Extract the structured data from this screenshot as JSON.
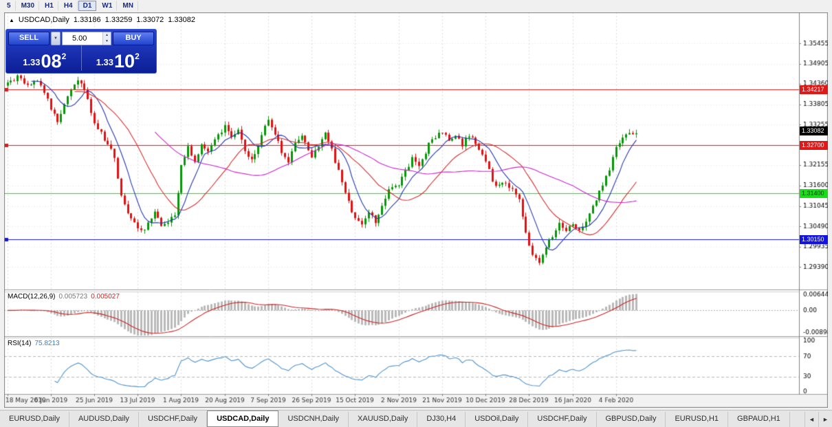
{
  "toolbar": {
    "timeframes": [
      "5",
      "M30",
      "H1",
      "H4",
      "D1",
      "W1",
      "MN"
    ],
    "active": "D1"
  },
  "header": {
    "collapse_icon": "▲",
    "title": "USDCAD,Daily",
    "open": "1.33186",
    "high": "1.33259",
    "low": "1.33072",
    "close": "1.33082"
  },
  "trade_panel": {
    "sell_label": "SELL",
    "buy_label": "BUY",
    "volume": "5.00",
    "dropdown_icon": "▼",
    "spin_up_icon": "▲",
    "spin_down_icon": "▼",
    "sell_price": {
      "prefix": "1.33",
      "big": "08",
      "sup": "2"
    },
    "buy_price": {
      "prefix": "1.33",
      "big": "10",
      "sup": "2"
    }
  },
  "tabs": {
    "items": [
      "EURUSD,Daily",
      "AUDUSD,Daily",
      "USDCHF,Daily",
      "USDCAD,Daily",
      "USDCNH,Daily",
      "XAUUSD,Daily",
      "DJ30,H4",
      "USDOil,Daily",
      "USDCHF,Daily",
      "GBPUSD,Daily",
      "EURUSD,H1",
      "GBPAUD,H1"
    ],
    "active_index": 3,
    "scroll_left": "◄",
    "scroll_right": "►"
  },
  "chart_data": {
    "type": "candlestick",
    "symbol": "USDCAD",
    "timeframe": "Daily",
    "ohlc_display": {
      "open": 1.33186,
      "high": 1.33259,
      "low": 1.33072,
      "close": 1.33082
    },
    "x_labels": [
      "18 May 2019",
      "6 Jun 2019",
      "25 Jun 2019",
      "13 Jul 2019",
      "1 Aug 2019",
      "20 Aug 2019",
      "7 Sep 2019",
      "26 Sep 2019",
      "15 Oct 2019",
      "2 Nov 2019",
      "21 Nov 2019",
      "10 Dec 2019",
      "28 Dec 2019",
      "16 Jan 2020",
      "4 Feb 2020"
    ],
    "bars_per_label": 13,
    "total_bars": 189,
    "close_anchors": [
      [
        0,
        1.3435
      ],
      [
        3,
        1.3455
      ],
      [
        6,
        1.3428
      ],
      [
        9,
        1.3446
      ],
      [
        12,
        1.3392
      ],
      [
        15,
        1.333
      ],
      [
        18,
        1.3398
      ],
      [
        21,
        1.3448
      ],
      [
        23,
        1.342
      ],
      [
        26,
        1.3332
      ],
      [
        29,
        1.3288
      ],
      [
        32,
        1.324
      ],
      [
        34,
        1.313
      ],
      [
        37,
        1.3068
      ],
      [
        39,
        1.3048
      ],
      [
        41,
        1.3038
      ],
      [
        44,
        1.309
      ],
      [
        46,
        1.3045
      ],
      [
        49,
        1.3072
      ],
      [
        50,
        1.3082
      ],
      [
        52,
        1.321
      ],
      [
        54,
        1.3262
      ],
      [
        56,
        1.3222
      ],
      [
        58,
        1.3278
      ],
      [
        60,
        1.3252
      ],
      [
        63,
        1.3298
      ],
      [
        65,
        1.3322
      ],
      [
        67,
        1.3288
      ],
      [
        69,
        1.3318
      ],
      [
        71,
        1.3258
      ],
      [
        73,
        1.323
      ],
      [
        75,
        1.3272
      ],
      [
        78,
        1.3338
      ],
      [
        80,
        1.3298
      ],
      [
        82,
        1.3252
      ],
      [
        84,
        1.3222
      ],
      [
        86,
        1.3278
      ],
      [
        88,
        1.3298
      ],
      [
        90,
        1.3258
      ],
      [
        91,
        1.3242
      ],
      [
        93,
        1.327
      ],
      [
        95,
        1.33
      ],
      [
        97,
        1.3258
      ],
      [
        99,
        1.3198
      ],
      [
        101,
        1.3138
      ],
      [
        103,
        1.3088
      ],
      [
        104,
        1.3068
      ],
      [
        106,
        1.3058
      ],
      [
        108,
        1.3088
      ],
      [
        110,
        1.3058
      ],
      [
        112,
        1.3108
      ],
      [
        114,
        1.3148
      ],
      [
        117,
        1.3162
      ],
      [
        119,
        1.3198
      ],
      [
        121,
        1.3232
      ],
      [
        123,
        1.3212
      ],
      [
        125,
        1.3252
      ],
      [
        127,
        1.3288
      ],
      [
        130,
        1.3308
      ],
      [
        132,
        1.3282
      ],
      [
        134,
        1.3298
      ],
      [
        136,
        1.3272
      ],
      [
        138,
        1.3298
      ],
      [
        140,
        1.3278
      ],
      [
        143,
        1.3228
      ],
      [
        145,
        1.3172
      ],
      [
        147,
        1.3158
      ],
      [
        149,
        1.3168
      ],
      [
        151,
        1.3148
      ],
      [
        153,
        1.3118
      ],
      [
        155,
        1.3028
      ],
      [
        157,
        1.2968
      ],
      [
        159,
        1.2955
      ],
      [
        161,
        1.2992
      ],
      [
        163,
        1.3022
      ],
      [
        165,
        1.3058
      ],
      [
        167,
        1.3042
      ],
      [
        169,
        1.3052
      ],
      [
        171,
        1.3036
      ],
      [
        173,
        1.3062
      ],
      [
        175,
        1.3102
      ],
      [
        177,
        1.314
      ],
      [
        179,
        1.3182
      ],
      [
        181,
        1.3232
      ],
      [
        182,
        1.3262
      ],
      [
        184,
        1.3288
      ],
      [
        186,
        1.3298
      ],
      [
        188,
        1.3308
      ]
    ],
    "price_axis_ticks": [
      "1.35455",
      "1.34905",
      "1.34360",
      "1.33805",
      "1.33255",
      "1.32700",
      "1.32155",
      "1.31600",
      "1.31045",
      "1.30490",
      "1.29935",
      "1.29390"
    ],
    "price_range": {
      "top": 1.363,
      "bottom": 1.2878
    },
    "current_price": {
      "value": 1.33082,
      "label": "1.33082",
      "tag_bg": "#000000",
      "tag_fg": "#ffffff"
    },
    "horizontal_levels": [
      {
        "value": 1.34217,
        "label": "1.34217",
        "color": "#e01818",
        "tag_fg": "#ffffff",
        "handle": true
      },
      {
        "value": 1.327,
        "label": "1.32700",
        "color": "#e01818",
        "tag_fg": "#ffffff",
        "handle": true
      },
      {
        "value": 1.314,
        "label": "1.31400",
        "color": "#18dd18",
        "tag_fg": "#083808",
        "handle": false
      },
      {
        "value": 1.3015,
        "label": "1.30150",
        "color": "#1414e0",
        "tag_fg": "#ffffff",
        "handle": true
      }
    ],
    "moving_averages": [
      {
        "period": 8,
        "color": "#2236ae"
      },
      {
        "period": 21,
        "color": "#d82a2a"
      },
      {
        "period": 45,
        "color": "#cc22cc"
      }
    ],
    "candle_colors": {
      "up": "#089608",
      "down": "#e01010"
    },
    "grid_color": "#dcdcdc",
    "macd": {
      "label": "MACD(12,26,9)",
      "main_value": "0.005723",
      "signal_value": "0.005027",
      "fast": 12,
      "slow": 26,
      "signal": 9,
      "axis_labels": [
        "0.006448",
        "0.00",
        "-0.008982"
      ],
      "range": {
        "max": 0.0065,
        "min": -0.009
      },
      "histogram_color": "#b9b9b9",
      "signal_color": "#cc2222"
    },
    "rsi": {
      "label": "RSI(14)",
      "value": "75.8213",
      "period": 14,
      "axis_labels": [
        "100",
        "70",
        "30",
        "0"
      ],
      "level_lines": [
        70,
        30
      ],
      "line_color": "#4f94cd"
    }
  }
}
